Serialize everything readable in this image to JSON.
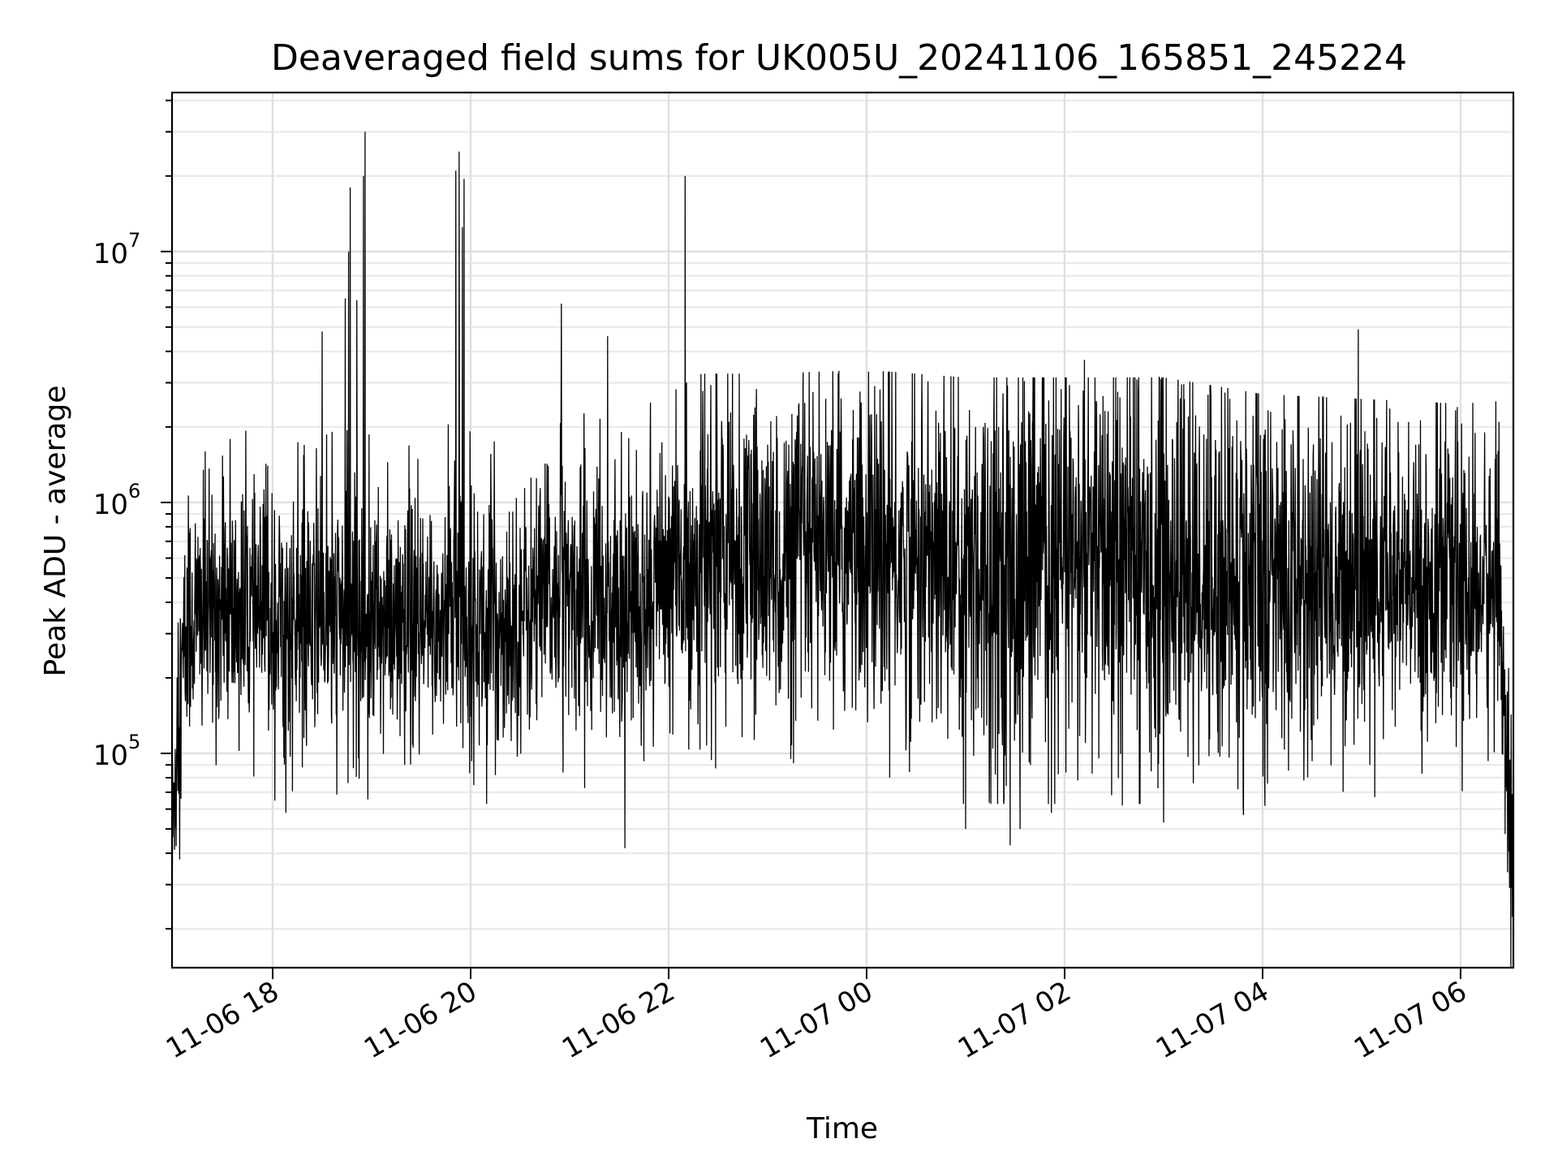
{
  "chart_data": {
    "type": "line",
    "title": "Deaveraged field sums for UK005U_20241106_165851_245224",
    "xlabel": "Time",
    "ylabel": "Peak ADU - average",
    "yscale": "log",
    "grid": true,
    "line_color": "#000000",
    "xlim": [
      "2024-11-06T16:59",
      "2024-11-07T06:32"
    ],
    "ylim": [
      14000,
      43000000
    ],
    "x_ticks": [
      {
        "value": "2024-11-06T18:00",
        "label": "11-06 18"
      },
      {
        "value": "2024-11-06T20:00",
        "label": "11-06 20"
      },
      {
        "value": "2024-11-06T22:00",
        "label": "11-06 22"
      },
      {
        "value": "2024-11-07T00:00",
        "label": "11-07 00"
      },
      {
        "value": "2024-11-07T02:00",
        "label": "11-07 02"
      },
      {
        "value": "2024-11-07T04:00",
        "label": "11-07 04"
      },
      {
        "value": "2024-11-07T06:00",
        "label": "11-07 06"
      }
    ],
    "y_ticks": [
      {
        "value": 100000,
        "base": "10",
        "exp": "5"
      },
      {
        "value": 1000000,
        "base": "10",
        "exp": "6"
      },
      {
        "value": 10000000,
        "base": "10",
        "exp": "7"
      }
    ],
    "series": [
      {
        "baseline": [
          [
            "2024-11-06T16:59",
            30000
          ],
          [
            "2024-11-06T17:03",
            150000
          ],
          [
            "2024-11-06T17:10",
            350000
          ],
          [
            "2024-11-06T17:30",
            360000
          ],
          [
            "2024-11-06T18:00",
            340000
          ],
          [
            "2024-11-06T18:20",
            300000
          ],
          [
            "2024-11-06T18:40",
            350000
          ],
          [
            "2024-11-06T19:00",
            330000
          ],
          [
            "2024-11-06T19:30",
            290000
          ],
          [
            "2024-11-06T19:50",
            380000
          ],
          [
            "2024-11-06T20:10",
            300000
          ],
          [
            "2024-11-06T20:40",
            380000
          ],
          [
            "2024-11-06T21:00",
            420000
          ],
          [
            "2024-11-06T21:30",
            360000
          ],
          [
            "2024-11-06T22:00",
            480000
          ],
          [
            "2024-11-06T22:20",
            580000
          ],
          [
            "2024-11-06T23:00",
            580000
          ],
          [
            "2024-11-07T00:00",
            600000
          ],
          [
            "2024-11-07T01:00",
            560000
          ],
          [
            "2024-11-07T02:00",
            560000
          ],
          [
            "2024-11-07T03:00",
            560000
          ],
          [
            "2024-11-07T04:00",
            480000
          ],
          [
            "2024-11-07T05:00",
            460000
          ],
          [
            "2024-11-07T06:00",
            440000
          ],
          [
            "2024-11-07T06:22",
            450000
          ],
          [
            "2024-11-07T06:27",
            150000
          ],
          [
            "2024-11-07T06:32",
            19000
          ]
        ],
        "spread": [
          [
            "2024-11-06T16:59",
            0.45
          ],
          [
            "2024-11-06T21:30",
            0.45
          ],
          [
            "2024-11-06T22:00",
            0.55
          ],
          [
            "2024-11-07T00:30",
            0.6
          ],
          [
            "2024-11-07T01:00",
            0.72
          ],
          [
            "2024-11-07T04:00",
            0.72
          ],
          [
            "2024-11-07T05:00",
            0.55
          ],
          [
            "2024-11-07T06:32",
            0.5
          ]
        ],
        "peaks": [
          [
            "2024-11-06T17:18",
            1350000
          ],
          [
            "2024-11-06T17:57",
            1400000
          ],
          [
            "2024-11-06T18:30",
            4800000
          ],
          [
            "2024-11-06T18:44",
            6500000
          ],
          [
            "2024-11-06T18:46",
            10000000
          ],
          [
            "2024-11-06T18:47",
            18000000
          ],
          [
            "2024-11-06T18:51",
            6400000
          ],
          [
            "2024-11-06T18:55",
            20000000
          ],
          [
            "2024-11-06T18:56",
            30000000
          ],
          [
            "2024-11-06T19:51",
            21000000
          ],
          [
            "2024-11-06T19:53",
            25000000
          ],
          [
            "2024-11-06T19:55",
            12500000
          ],
          [
            "2024-11-06T19:56",
            19500000
          ],
          [
            "2024-11-06T20:47",
            1400000
          ],
          [
            "2024-11-06T20:55",
            6200000
          ],
          [
            "2024-11-06T21:23",
            4600000
          ],
          [
            "2024-11-06T21:49",
            2500000
          ],
          [
            "2024-11-06T22:10",
            20000000
          ],
          [
            "2024-11-06T22:33",
            1700000
          ],
          [
            "2024-11-06T23:00",
            1700000
          ],
          [
            "2024-11-07T01:06",
            2000000
          ],
          [
            "2024-11-07T01:20",
            2000000
          ],
          [
            "2024-11-07T02:12",
            3700000
          ],
          [
            "2024-11-07T02:40",
            2200000
          ],
          [
            "2024-11-07T03:15",
            2200000
          ],
          [
            "2024-11-07T04:35",
            1800000
          ],
          [
            "2024-11-07T04:58",
            4900000
          ],
          [
            "2024-11-07T05:58",
            2400000
          ]
        ],
        "dips": [
          [
            "2024-11-06T17:08",
            140000
          ],
          [
            "2024-11-06T18:08",
            58000
          ],
          [
            "2024-11-06T18:18",
            88000
          ],
          [
            "2024-11-06T19:20",
            90000
          ],
          [
            "2024-11-06T20:15",
            82000
          ],
          [
            "2024-11-06T20:56",
            84000
          ],
          [
            "2024-11-06T21:45",
            93000
          ],
          [
            "2024-11-06T23:14",
            95000
          ],
          [
            "2024-11-07T00:14",
            80000
          ],
          [
            "2024-11-07T01:00",
            50000
          ],
          [
            "2024-11-07T01:27",
            43000
          ],
          [
            "2024-11-07T01:33",
            50000
          ],
          [
            "2024-11-07T01:52",
            58000
          ],
          [
            "2024-11-07T02:35",
            62000
          ],
          [
            "2024-11-07T03:00",
            53000
          ],
          [
            "2024-11-07T03:18",
            76000
          ],
          [
            "2024-11-07T03:45",
            72000
          ],
          [
            "2024-11-07T04:25",
            78000
          ],
          [
            "2024-11-07T05:05",
            90000
          ]
        ]
      }
    ]
  }
}
